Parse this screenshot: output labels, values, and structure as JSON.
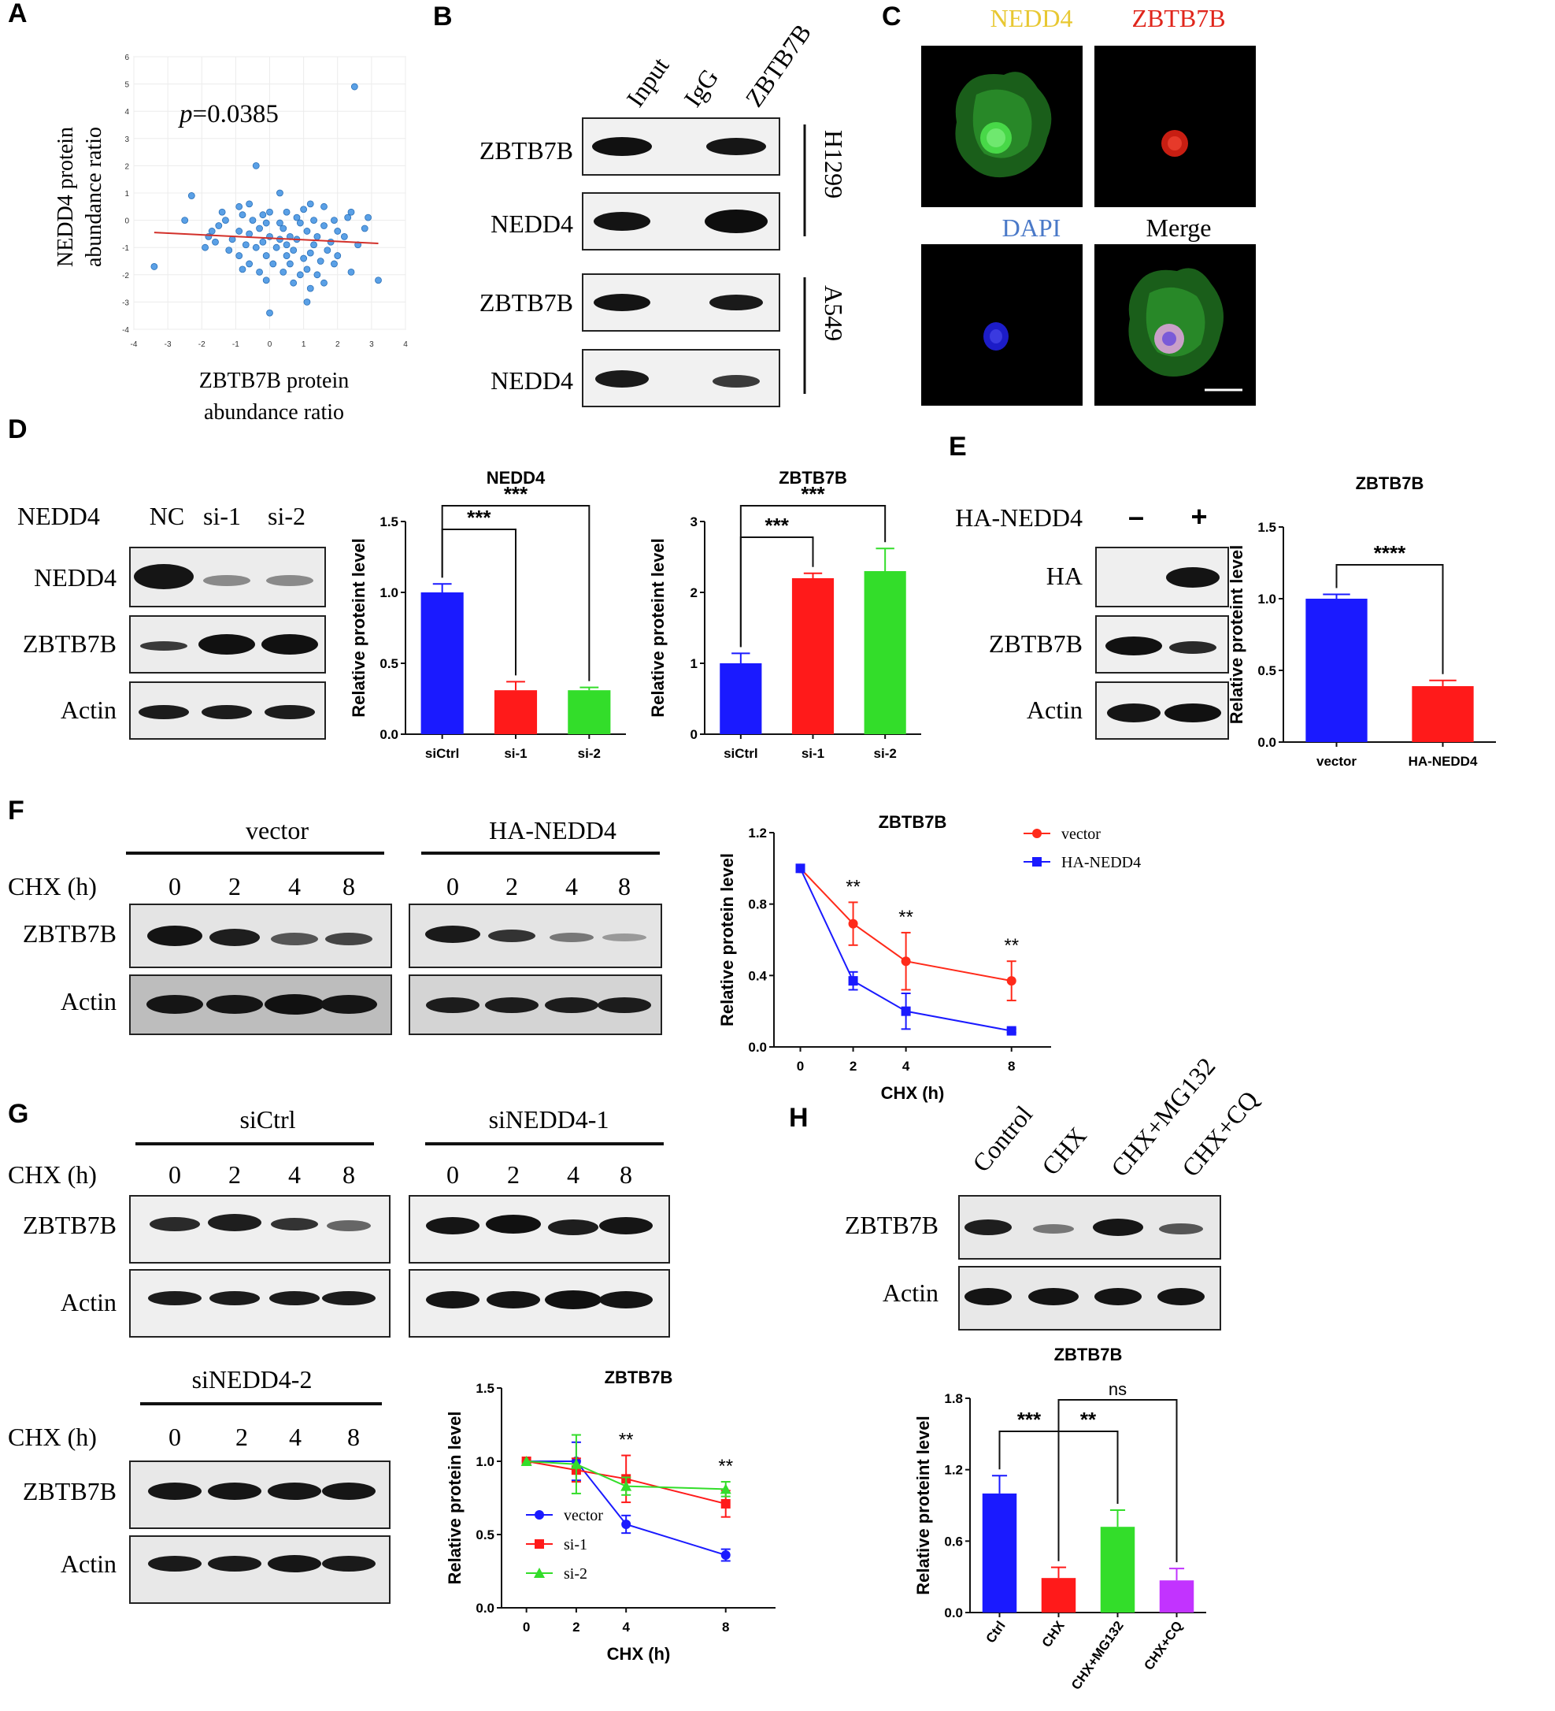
{
  "panels": {
    "A": {
      "letter": "A",
      "p_value_prefix": "p",
      "p_value_suffix": "=0.0385",
      "ylabel_line1": "NEDD4 protein",
      "ylabel_line2": "abundance ratio",
      "xlabel_line1": "ZBTB7B protein",
      "xlabel_line2": "abundance ratio",
      "xticks": [
        "-4",
        "-3",
        "-2",
        "-1",
        "0",
        "1",
        "2",
        "3",
        "4"
      ],
      "yticks": [
        "-4",
        "-3",
        "-2",
        "-1",
        "0",
        "1",
        "2",
        "3",
        "4",
        "5",
        "6"
      ]
    },
    "B": {
      "letter": "B",
      "lanes": [
        "Input",
        "IgG",
        "ZBTB7B"
      ],
      "rows": [
        "ZBTB7B",
        "NEDD4",
        "ZBTB7B",
        "NEDD4"
      ],
      "cell_lines": [
        "H1299",
        "A549"
      ]
    },
    "C": {
      "letter": "C",
      "titles": [
        "NEDD4",
        "ZBTB7B",
        "DAPI",
        "Merge"
      ],
      "title_colors": [
        "#e8c832",
        "#e0261c",
        "#4a79c8",
        "#000000"
      ]
    },
    "D": {
      "letter": "D",
      "blot_header": "NEDD4",
      "lanes": [
        "NC",
        "si-1",
        "si-2"
      ],
      "rows": [
        "NEDD4",
        "ZBTB7B",
        "Actin"
      ]
    },
    "E": {
      "letter": "E",
      "blot_header": "HA-NEDD4",
      "lanes": [
        "–",
        "+"
      ],
      "rows": [
        "HA",
        "ZBTB7B",
        "Actin"
      ]
    },
    "F": {
      "letter": "F",
      "groups": [
        "vector",
        "HA-NEDD4"
      ],
      "chx_label": "CHX (h)",
      "timepoints": [
        "0",
        "2",
        "4",
        "8"
      ],
      "rows": [
        "ZBTB7B",
        "Actin"
      ]
    },
    "G": {
      "letter": "G",
      "groups": [
        "siCtrl",
        "siNEDD4-1",
        "siNEDD4-2"
      ],
      "chx_label": "CHX (h)",
      "timepoints": [
        "0",
        "2",
        "4",
        "8"
      ],
      "rows": [
        "ZBTB7B",
        "Actin"
      ]
    },
    "H": {
      "letter": "H",
      "lanes": [
        "Control",
        "CHX",
        "CHX+MG132",
        "CHX+CQ"
      ],
      "rows": [
        "ZBTB7B",
        "Actin"
      ]
    }
  },
  "chart_data": [
    {
      "id": "A-scatter",
      "type": "scatter",
      "xlim": [
        -4,
        4
      ],
      "ylim": [
        -4,
        6
      ],
      "points": [
        [
          2.5,
          4.9
        ],
        [
          -0.4,
          2.0
        ],
        [
          0.3,
          1.0
        ],
        [
          -2.3,
          0.9
        ],
        [
          -0.6,
          0.6
        ],
        [
          -0.9,
          0.5
        ],
        [
          1.2,
          0.6
        ],
        [
          1.6,
          0.5
        ],
        [
          1.0,
          0.4
        ],
        [
          -1.4,
          0.3
        ],
        [
          0.0,
          0.3
        ],
        [
          0.5,
          0.3
        ],
        [
          2.4,
          0.3
        ],
        [
          -0.2,
          0.2
        ],
        [
          -0.8,
          0.2
        ],
        [
          0.8,
          0.1
        ],
        [
          2.3,
          0.1
        ],
        [
          2.9,
          0.1
        ],
        [
          -2.5,
          0.0
        ],
        [
          -1.3,
          0.0
        ],
        [
          -0.5,
          0.0
        ],
        [
          0.3,
          -0.1
        ],
        [
          1.3,
          0.0
        ],
        [
          1.9,
          0.0
        ],
        [
          -0.1,
          -0.1
        ],
        [
          0.9,
          -0.1
        ],
        [
          1.6,
          -0.2
        ],
        [
          -1.7,
          -0.4
        ],
        [
          -0.9,
          -0.4
        ],
        [
          -0.3,
          -0.3
        ],
        [
          0.4,
          -0.3
        ],
        [
          1.1,
          -0.4
        ],
        [
          2.0,
          -0.4
        ],
        [
          -1.8,
          -0.6
        ],
        [
          -1.1,
          -0.7
        ],
        [
          -0.6,
          -0.5
        ],
        [
          0.0,
          -0.6
        ],
        [
          0.6,
          -0.6
        ],
        [
          1.4,
          -0.6
        ],
        [
          2.2,
          -0.6
        ],
        [
          -1.6,
          -0.8
        ],
        [
          -0.7,
          -0.9
        ],
        [
          -0.2,
          -0.8
        ],
        [
          0.3,
          -0.7
        ],
        [
          0.8,
          -0.7
        ],
        [
          1.3,
          -0.9
        ],
        [
          1.8,
          -0.8
        ],
        [
          2.6,
          -0.9
        ],
        [
          -1.9,
          -1.0
        ],
        [
          -1.2,
          -1.1
        ],
        [
          -0.4,
          -1.0
        ],
        [
          0.2,
          -1.0
        ],
        [
          0.7,
          -1.1
        ],
        [
          1.2,
          -1.2
        ],
        [
          1.7,
          -1.1
        ],
        [
          -0.9,
          -1.3
        ],
        [
          -0.1,
          -1.3
        ],
        [
          0.5,
          -1.3
        ],
        [
          1.0,
          -1.4
        ],
        [
          1.5,
          -1.5
        ],
        [
          2.0,
          -1.3
        ],
        [
          -0.6,
          -1.6
        ],
        [
          0.1,
          -1.6
        ],
        [
          0.6,
          -1.6
        ],
        [
          1.1,
          -1.8
        ],
        [
          1.9,
          -1.6
        ],
        [
          -0.3,
          -1.9
        ],
        [
          0.4,
          -1.9
        ],
        [
          0.9,
          -2.0
        ],
        [
          1.4,
          -2.0
        ],
        [
          2.4,
          -1.9
        ],
        [
          -0.1,
          -2.2
        ],
        [
          0.7,
          -2.3
        ],
        [
          1.2,
          -2.5
        ],
        [
          -3.4,
          -1.7
        ],
        [
          3.2,
          -2.2
        ],
        [
          1.1,
          -3.0
        ],
        [
          0.0,
          -3.4
        ],
        [
          -1.5,
          -0.2
        ],
        [
          2.8,
          -0.3
        ],
        [
          0.5,
          -0.9
        ],
        [
          -0.8,
          -1.8
        ],
        [
          1.6,
          -2.3
        ]
      ],
      "trend": [
        [
          -3.4,
          -0.45
        ],
        [
          3.2,
          -0.85
        ]
      ]
    },
    {
      "id": "D-NEDD4",
      "type": "bar",
      "title": "NEDD4",
      "ylabel": "Relative proteint level",
      "categories": [
        "siCtrl",
        "si-1",
        "si-2"
      ],
      "values": [
        1.0,
        0.31,
        0.31
      ],
      "errors": [
        0.06,
        0.06,
        0.02
      ],
      "colors": [
        "#1a1aff",
        "#ff1a1a",
        "#33dd2a"
      ],
      "ylim": [
        0,
        1.5
      ],
      "yticks": [
        "0.0",
        "0.5",
        "1.0",
        "1.5"
      ],
      "sig": [
        [
          "0",
          "1",
          "***"
        ],
        [
          "0",
          "2",
          "***"
        ]
      ]
    },
    {
      "id": "D-ZBTB7B",
      "type": "bar",
      "title": "ZBTB7B",
      "ylabel": "Relative proteint level",
      "categories": [
        "siCtrl",
        "si-1",
        "si-2"
      ],
      "values": [
        1.0,
        2.2,
        2.3
      ],
      "errors": [
        0.14,
        0.07,
        0.32
      ],
      "colors": [
        "#1a1aff",
        "#ff1a1a",
        "#33dd2a"
      ],
      "ylim": [
        0,
        3
      ],
      "yticks": [
        "0",
        "1",
        "2",
        "3"
      ],
      "sig": [
        [
          "0",
          "1",
          "***"
        ],
        [
          "0",
          "2",
          "***"
        ]
      ]
    },
    {
      "id": "E-ZBTB7B",
      "type": "bar",
      "title": "ZBTB7B",
      "ylabel": "Relative proteint level",
      "categories": [
        "vector",
        "HA-NEDD4"
      ],
      "values": [
        1.0,
        0.39
      ],
      "errors": [
        0.03,
        0.04
      ],
      "colors": [
        "#1a1aff",
        "#ff1a1a"
      ],
      "ylim": [
        0,
        1.5
      ],
      "yticks": [
        "0.0",
        "0.5",
        "1.0",
        "1.5"
      ],
      "sig": [
        [
          "0",
          "1",
          "****"
        ]
      ]
    },
    {
      "id": "F-line",
      "type": "line",
      "title": "ZBTB7B",
      "xlabel": "CHX (h)",
      "ylabel": "Relative protein level",
      "x": [
        0,
        2,
        4,
        8
      ],
      "xticks": [
        "0",
        "2",
        "4",
        "8"
      ],
      "ylim": [
        0,
        1.2
      ],
      "yticks": [
        "0.0",
        "0.4",
        "0.8",
        "1.2"
      ],
      "series": [
        {
          "name": "vector",
          "values": [
            1.0,
            0.69,
            0.48,
            0.37
          ],
          "errors": [
            0.0,
            0.12,
            0.16,
            0.11
          ],
          "color": "#ff2a1a",
          "marker": "circle"
        },
        {
          "name": "HA-NEDD4",
          "values": [
            1.0,
            0.37,
            0.2,
            0.09
          ],
          "errors": [
            0.0,
            0.05,
            0.1,
            0.01
          ],
          "color": "#1a1aff",
          "marker": "square"
        }
      ],
      "annotations": [
        [
          "2",
          "**"
        ],
        [
          "4",
          "**"
        ],
        [
          "8",
          "**"
        ]
      ]
    },
    {
      "id": "G-line",
      "type": "line",
      "title": "ZBTB7B",
      "xlabel": "CHX (h)",
      "ylabel": "Relative protein level",
      "x": [
        0,
        2,
        4,
        8
      ],
      "xticks": [
        "0",
        "2",
        "4",
        "8"
      ],
      "ylim": [
        0,
        1.5
      ],
      "yticks": [
        "0.0",
        "0.5",
        "1.0",
        "1.5"
      ],
      "series": [
        {
          "name": "vector",
          "values": [
            1.0,
            1.0,
            0.57,
            0.36
          ],
          "errors": [
            0.0,
            0.13,
            0.06,
            0.04
          ],
          "color": "#1a1aff",
          "marker": "circle"
        },
        {
          "name": "si-1",
          "values": [
            1.0,
            0.94,
            0.88,
            0.71
          ],
          "errors": [
            0.0,
            0.08,
            0.16,
            0.09
          ],
          "color": "#ff1a1a",
          "marker": "square"
        },
        {
          "name": "si-2",
          "values": [
            1.0,
            0.98,
            0.83,
            0.81
          ],
          "errors": [
            0.0,
            0.2,
            0.06,
            0.05
          ],
          "color": "#33dd2a",
          "marker": "triangle"
        }
      ],
      "annotations": [
        [
          "4",
          "**"
        ],
        [
          "8",
          "**"
        ]
      ]
    },
    {
      "id": "H-bar",
      "type": "bar",
      "title": "ZBTB7B",
      "ylabel": "Relative proteint level",
      "categories": [
        "Ctrl",
        "CHX",
        "CHX+MG132",
        "CHX+CQ"
      ],
      "values": [
        1.0,
        0.29,
        0.72,
        0.27
      ],
      "errors": [
        0.15,
        0.09,
        0.14,
        0.1
      ],
      "colors": [
        "#1a1aff",
        "#ff1a1a",
        "#33dd2a",
        "#c233ff"
      ],
      "ylim": [
        0,
        1.8
      ],
      "yticks": [
        "0.0",
        "0.6",
        "1.2",
        "1.8"
      ],
      "sig": [
        [
          "0",
          "1",
          "***"
        ],
        [
          "1",
          "2",
          "**"
        ],
        [
          "1",
          "3",
          "ns"
        ]
      ]
    }
  ]
}
